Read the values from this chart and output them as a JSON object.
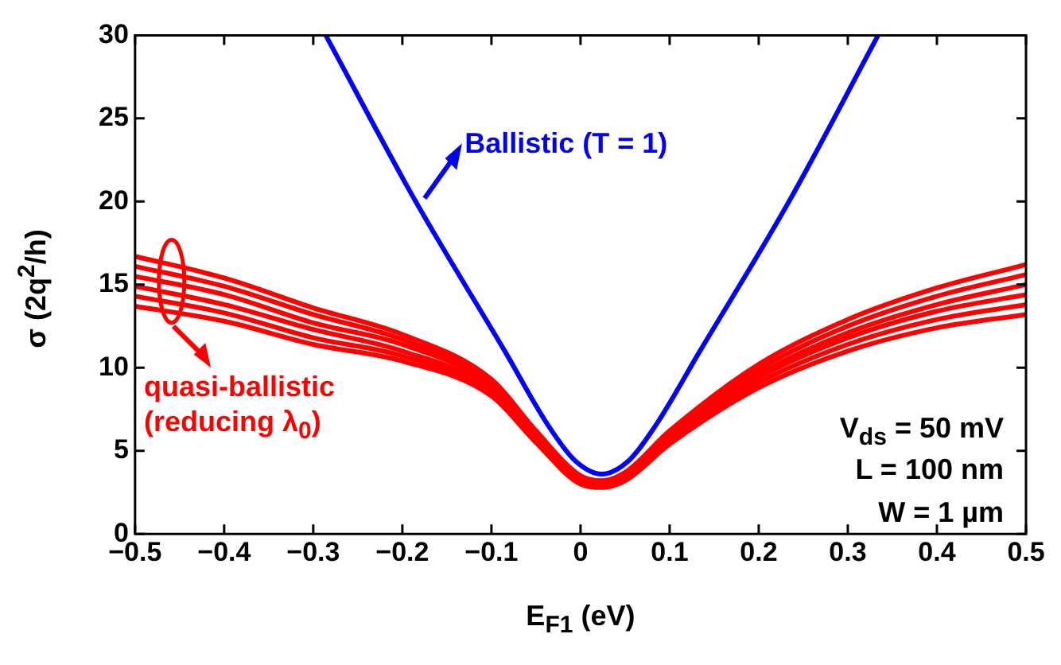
{
  "chart_data": {
    "type": "line",
    "xlabel": "E$_{F1}$ (eV)",
    "ylabel": "σ (2q$^{2}$/h)",
    "x": [
      -0.5,
      -0.4,
      -0.3,
      -0.2,
      -0.1,
      -0.05,
      0,
      0.024,
      0.05,
      0.1,
      0.2,
      0.3,
      0.4,
      0.5
    ],
    "series": [
      {
        "color": "#0000ff",
        "x": [
          -0.286,
          -0.185,
          -0.085,
          -0.036,
          -0.006,
          0.024,
          0.054,
          0.084,
          0.134,
          0.234,
          0.334
        ],
        "values": [
          30,
          20,
          11,
          6.5,
          4.4,
          3.6,
          4.4,
          6.5,
          11,
          20,
          30
        ]
      },
      {
        "color": "#ff0000",
        "values": [
          16.7,
          15.4,
          13.6,
          12.0,
          9.3,
          6.2,
          3.5,
          3.2,
          3.7,
          6.2,
          10.2,
          12.9,
          14.8,
          16.2
        ]
      },
      {
        "color": "#ff0000",
        "values": [
          16.1,
          14.9,
          13.2,
          11.7,
          9.1,
          6.1,
          3.4,
          3.1,
          3.6,
          6.0,
          9.9,
          12.5,
          14.3,
          15.6
        ]
      },
      {
        "color": "#ff0000",
        "values": [
          15.5,
          14.4,
          12.7,
          11.4,
          8.9,
          5.9,
          3.3,
          3.0,
          3.5,
          5.9,
          9.6,
          12.1,
          13.8,
          15.0
        ]
      },
      {
        "color": "#ff0000",
        "values": [
          14.9,
          13.8,
          12.3,
          11.0,
          8.7,
          5.8,
          3.2,
          3.0,
          3.4,
          5.7,
          9.4,
          11.8,
          13.4,
          14.4
        ]
      },
      {
        "color": "#ff0000",
        "values": [
          14.3,
          13.3,
          11.8,
          10.7,
          8.5,
          5.6,
          3.1,
          2.9,
          3.3,
          5.5,
          9.1,
          11.4,
          12.9,
          13.8
        ]
      },
      {
        "color": "#ff0000",
        "values": [
          13.7,
          12.8,
          11.4,
          10.4,
          8.3,
          5.5,
          3.0,
          2.8,
          3.2,
          5.4,
          8.8,
          11.0,
          12.4,
          13.2
        ]
      }
    ],
    "xlim": [
      -0.5,
      0.5
    ],
    "xticks": [
      {
        "value": -0.5,
        "label": "−0.5"
      },
      {
        "value": -0.4,
        "label": "−0.4"
      },
      {
        "value": -0.3,
        "label": "−0.3"
      },
      {
        "value": -0.2,
        "label": "−0.2"
      },
      {
        "value": -0.1,
        "label": "−0.1"
      },
      0,
      0.1,
      0.2,
      0.3,
      0.4,
      0.5
    ],
    "ylim": [
      0,
      30
    ],
    "yticks": [
      0,
      5,
      10,
      15,
      20,
      25,
      30
    ],
    "annotations": [
      "Ballistic (T = 1)",
      "quasi-ballistic (reducing λ$_{0}$)",
      "V$_{ds}$ = 50 mV",
      "L = 100 nm",
      "W = 1 µm"
    ],
    "grid": false,
    "legend": false,
    "marker": "none",
    "line_style": "solid"
  }
}
